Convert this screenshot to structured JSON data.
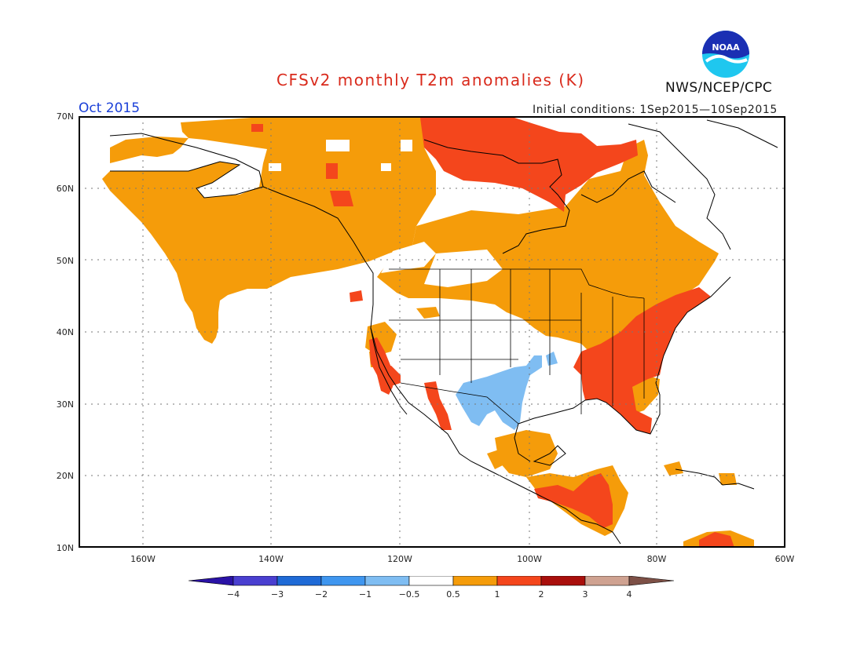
{
  "header": {
    "title": "CFSv2 monthly T2m anomalies (K)",
    "agency": "NWS/NCEP/CPC",
    "logo_text": "NOAA",
    "valid_month": "Oct 2015",
    "initial_conditions": "Initial conditions: 1Sep2015—10Sep2015"
  },
  "axes": {
    "lat_labels": [
      "70N",
      "60N",
      "50N",
      "40N",
      "30N",
      "20N",
      "10N"
    ],
    "lon_labels": [
      "160W",
      "140W",
      "120W",
      "100W",
      "80W",
      "60W"
    ],
    "lat_range": [
      10,
      70
    ],
    "lon_range": [
      -170,
      -60
    ],
    "gridlines": "dotted"
  },
  "colorbar": {
    "labels": [
      "−4",
      "−3",
      "−2",
      "−1",
      "−0.5",
      "0.5",
      "1",
      "2",
      "3",
      "4"
    ],
    "colors": [
      "#2a12a6",
      "#4a3fd0",
      "#1f6ad6",
      "#3f96ef",
      "#7fbdf2",
      "#ffffff",
      "#f59c0a",
      "#f4461c",
      "#a90f0c",
      "#cfa291",
      "#7d5046"
    ]
  },
  "anomaly_classes": {
    "warm_0_5_to_1": "#f59c0a",
    "warm_1_to_2": "#f4461c",
    "cool_minus_1_to_minus_0_5": "#7fbdf2"
  }
}
